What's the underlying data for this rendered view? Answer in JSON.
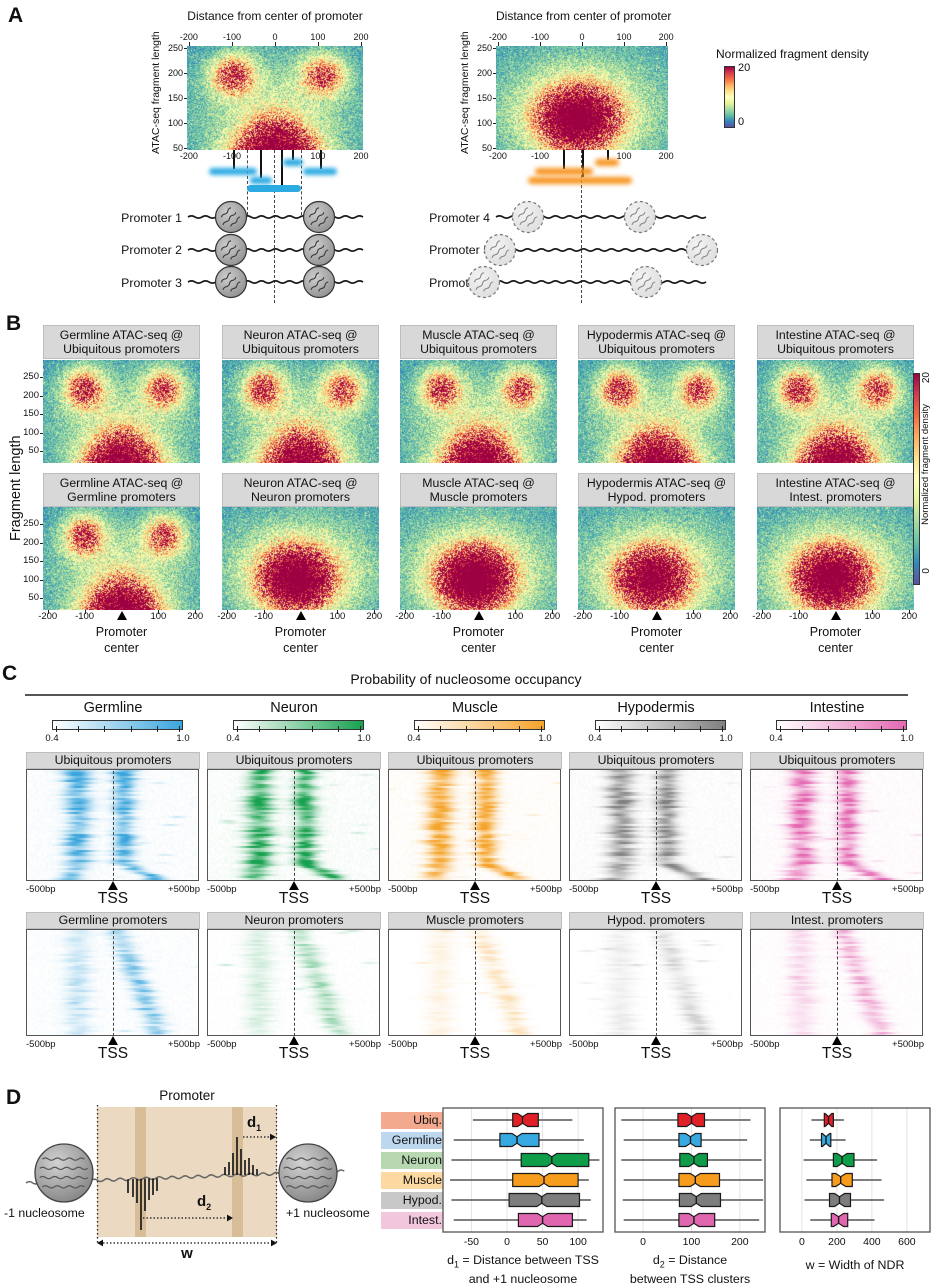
{
  "figure": {
    "panel_a_label": "A",
    "panel_b_label": "B",
    "panel_c_label": "C",
    "panel_d_label": "D"
  },
  "colors": {
    "heat_colormap": [
      "#5e4fa2",
      "#3288bd",
      "#66c2a5",
      "#abdda4",
      "#e6f598",
      "#ffffbf",
      "#fee08b",
      "#fdae61",
      "#f46d43",
      "#d53e4f",
      "#9e0142"
    ],
    "header_bg": "#d8d8d8",
    "fragment_blue": "#2caae2",
    "fragment_orange": "#f7941e",
    "promoter_box": "#ecd9c2",
    "promoter_stripe": "#d8bd99"
  },
  "panel_a": {
    "left": {
      "title": "Distance from center of promoter",
      "ylabel": "ATAC-seq fragment length",
      "x_ticks": [
        "-200",
        "-100",
        "0",
        "100",
        "200"
      ],
      "x_ticks_bottom": [
        "-200",
        "-100",
        "100",
        "200"
      ],
      "y_ticks": [
        "250",
        "200",
        "150",
        "100",
        "50"
      ],
      "promoters": [
        "Promoter 1",
        "Promoter 2",
        "Promoter 3"
      ]
    },
    "right": {
      "title": "Distance from center of promoter",
      "ylabel": "ATAC-seq fragment length",
      "x_ticks": [
        "-200",
        "-100",
        "0",
        "100",
        "200"
      ],
      "x_ticks_bottom": [
        "-200",
        "-100",
        "100",
        "200"
      ],
      "y_ticks": [
        "250",
        "200",
        "150",
        "100",
        "50"
      ],
      "promoters": [
        "Promoter 4",
        "Promoter 5",
        "Promoter 6"
      ]
    },
    "colorbar": {
      "title": "Normalized fragment density",
      "max": "20",
      "min": "0"
    }
  },
  "panel_b": {
    "ylabel": "Fragment length",
    "y_ticks": [
      "250",
      "200",
      "150",
      "100",
      "50"
    ],
    "x_ticks": [
      "-200",
      "-100",
      "100",
      "200"
    ],
    "x_axis_label_lines": [
      "Promoter",
      "center"
    ],
    "colorbar": {
      "label": "Normalized fragment density",
      "max": "20",
      "min": "0"
    },
    "columns": [
      {
        "row1": "Germline ATAC-seq @ Ubiquitous promoters",
        "row2": "Germline ATAC-seq @ Germline promoters",
        "row2_pattern": "V",
        "row2_amp": 1.3
      },
      {
        "row1": "Neuron ATAC-seq @ Ubiquitous promoters",
        "row2": "Neuron ATAC-seq @ Neuron promoters",
        "row2_pattern": "central",
        "row2_amp": 1.35
      },
      {
        "row1": "Muscle ATAC-seq @ Ubiquitous promoters",
        "row2": "Muscle ATAC-seq @ Muscle promoters",
        "row2_pattern": "central",
        "row2_amp": 1.45
      },
      {
        "row1": "Hypodermis ATAC-seq @ Ubiquitous promoters",
        "row2": "Hypodermis ATAC-seq @ Hypod. promoters",
        "row2_pattern": "central",
        "row2_amp": 1.15
      },
      {
        "row1": "Intestine ATAC-seq @ Ubiquitous promoters",
        "row2": "Intestine ATAC-seq @ Intest. promoters",
        "row2_pattern": "central",
        "row2_amp": 1.3
      }
    ]
  },
  "panel_c": {
    "title": "Probability of nucleosome occupancy",
    "scale_min": "0.4",
    "scale_max": "1.0",
    "x_left": "-500bp",
    "x_center": "TSS",
    "x_right": "+500bp",
    "columns": [
      {
        "tissue": "Germline",
        "color": "#3aa5dc",
        "row1": "Ubiquitous promoters",
        "row2": "Germline promoters",
        "row2_strength": 0.85
      },
      {
        "tissue": "Neuron",
        "color": "#18a14f",
        "row1": "Ubiquitous promoters",
        "row2": "Neuron promoters",
        "row2_strength": 0.5
      },
      {
        "tissue": "Muscle",
        "color": "#f5a329",
        "row1": "Ubiquitous promoters",
        "row2": "Muscle promoters",
        "row2_strength": 0.38
      },
      {
        "tissue": "Hypodermis",
        "color": "#808080",
        "row1": "Ubiquitous promoters",
        "row2": "Hypod. promoters",
        "row2_strength": 0.42
      },
      {
        "tissue": "Intestine",
        "color": "#e468b2",
        "row1": "Ubiquitous promoters",
        "row2": "Intest. promoters",
        "row2_strength": 0.7
      }
    ]
  },
  "panel_d": {
    "diagram": {
      "title": "Promoter",
      "minus1": "-1 nucleosome",
      "plus1": "+1 nucleosome",
      "d1_base": "d",
      "d1_sub": "1",
      "d2_base": "d",
      "d2_sub": "2",
      "w_label": "w"
    },
    "legend": [
      {
        "label": "Ubiq.",
        "color": "#e02026",
        "bg": "#f2a98e"
      },
      {
        "label": "Germline",
        "color": "#36a9e1",
        "bg": "#bdd7ee"
      },
      {
        "label": "Neuron",
        "color": "#0f9d4a",
        "bg": "#b7d8b0"
      },
      {
        "label": "Muscle",
        "color": "#f79c1c",
        "bg": "#fbd9a0"
      },
      {
        "label": "Hypod.",
        "color": "#7d7d7d",
        "bg": "#c8c8c8"
      },
      {
        "label": "Intest.",
        "color": "#e066b0",
        "bg": "#f2c6dd"
      }
    ],
    "captions": [
      {
        "base": "d",
        "sub": "1",
        "rest": " = Distance between TSS",
        "line2": "and +1 nucleosome"
      },
      {
        "base": "d",
        "sub": "2",
        "rest": " = Distance",
        "line2": "between TSS clusters"
      },
      {
        "base": "",
        "sub": "",
        "rest": "w = Width of NDR",
        "line2": ""
      }
    ]
  },
  "chart_data": [
    {
      "type": "heatmap",
      "panel": "A-left",
      "xlabel": "Distance from center of promoter",
      "ylabel": "ATAC-seq fragment length",
      "xlim": [
        -200,
        200
      ],
      "ylim": [
        50,
        250
      ],
      "colorbar_label": "Normalized fragment density",
      "colorbar_range": [
        0,
        20
      ],
      "description": "High density of ~180-220 bp fragments centered near -100 bp and +100 bp (flanking nucleosomes) plus a dense wedge of sub-100 bp fragments at the promoter center"
    },
    {
      "type": "heatmap",
      "panel": "A-right",
      "xlabel": "Distance from center of promoter",
      "ylabel": "ATAC-seq fragment length",
      "xlim": [
        -200,
        200
      ],
      "ylim": [
        50,
        250
      ],
      "colorbar_label": "Normalized fragment density",
      "colorbar_range": [
        0,
        20
      ],
      "description": "Single broad dense cloud of ~50-150 bp fragments centered on the promoter; no positioned flanking nucleosomes"
    },
    {
      "type": "heatmap",
      "panel": "B",
      "xlabel": "Promoter center",
      "ylabel": "Fragment length",
      "xlim": [
        -200,
        200
      ],
      "ylim": [
        50,
        300
      ],
      "colorbar_label": "Normalized fragment density",
      "colorbar_range": [
        0,
        20
      ],
      "grid_titles_row1": [
        "Germline ATAC-seq @ Ubiquitous promoters",
        "Neuron ATAC-seq @ Ubiquitous promoters",
        "Muscle ATAC-seq @ Ubiquitous promoters",
        "Hypodermis ATAC-seq @ Ubiquitous promoters",
        "Intestine ATAC-seq @ Ubiquitous promoters"
      ],
      "grid_titles_row2": [
        "Germline ATAC-seq @ Germline promoters",
        "Neuron ATAC-seq @ Neuron promoters",
        "Muscle ATAC-seq @ Muscle promoters",
        "Hypodermis ATAC-seq @ Hypod. promoters",
        "Intestine ATAC-seq @ Intest. promoters"
      ],
      "description": "Row 1 (all tissues at ubiquitous promoters) and Germline at germline promoters show the V pattern of flanking ~200 bp fragments plus central short fragments; Neuron/Muscle/Hypodermis/Intestine at their own promoters show one central short-fragment cloud"
    },
    {
      "type": "heatmap",
      "panel": "C",
      "title": "Probability of nucleosome occupancy",
      "xlim_bp": [
        -500,
        500
      ],
      "scale": [
        0.4,
        1.0
      ],
      "tissues": [
        "Germline",
        "Neuron",
        "Muscle",
        "Hypodermis",
        "Intestine"
      ],
      "row1_headers": [
        "Ubiquitous promoters",
        "Ubiquitous promoters",
        "Ubiquitous promoters",
        "Ubiquitous promoters",
        "Ubiquitous promoters"
      ],
      "row2_headers": [
        "Germline promoters",
        "Neuron promoters",
        "Muscle promoters",
        "Hypod. promoters",
        "Intest. promoters"
      ],
      "description": "Per-promoter heatmaps of nucleosome occupancy; ubiquitous promoters show -1 and +1 nucleosome bands flanking the TSS, tissue-specific promoters show a fainter +1 band fanning away from the TSS"
    },
    {
      "type": "boxplot",
      "name": "d1",
      "title": "d1 = Distance between TSS and +1 nucleosome",
      "x_ticks": [
        -50,
        0,
        50,
        100
      ],
      "xlim": [
        -90,
        135
      ],
      "categories": [
        "Ubiq.",
        "Germline",
        "Neuron",
        "Muscle",
        "Hypod.",
        "Intest."
      ],
      "stats": [
        {
          "lo": -48,
          "q1": 8,
          "med": 22,
          "q3": 44,
          "hi": 92
        },
        {
          "lo": -75,
          "q1": -10,
          "med": 14,
          "q3": 45,
          "hi": 108
        },
        {
          "lo": -78,
          "q1": 20,
          "med": 63,
          "q3": 115,
          "hi": 130
        },
        {
          "lo": -80,
          "q1": 8,
          "med": 52,
          "q3": 100,
          "hi": 115
        },
        {
          "lo": -78,
          "q1": 3,
          "med": 49,
          "q3": 102,
          "hi": 118
        },
        {
          "lo": -75,
          "q1": 16,
          "med": 50,
          "q3": 92,
          "hi": 112
        }
      ]
    },
    {
      "type": "boxplot",
      "name": "d2",
      "title": "d2 = Distance between TSS clusters",
      "x_ticks": [
        0,
        100,
        200
      ],
      "xlim": [
        -58,
        252
      ],
      "categories": [
        "Ubiq.",
        "Germline",
        "Neuron",
        "Muscle",
        "Hypod.",
        "Intest."
      ],
      "stats": [
        {
          "lo": -45,
          "q1": 72,
          "med": 100,
          "q3": 127,
          "hi": 222
        },
        {
          "lo": -40,
          "q1": 74,
          "med": 98,
          "q3": 120,
          "hi": 215
        },
        {
          "lo": -45,
          "q1": 76,
          "med": 105,
          "q3": 133,
          "hi": 245
        },
        {
          "lo": -40,
          "q1": 74,
          "med": 108,
          "q3": 158,
          "hi": 248
        },
        {
          "lo": -42,
          "q1": 75,
          "med": 110,
          "q3": 160,
          "hi": 248
        },
        {
          "lo": -40,
          "q1": 74,
          "med": 105,
          "q3": 148,
          "hi": 240
        }
      ]
    },
    {
      "type": "boxplot",
      "name": "w",
      "title": "w = Width of NDR",
      "x_ticks": [
        0,
        200,
        400,
        600
      ],
      "xlim": [
        -125,
        732
      ],
      "categories": [
        "Ubiq.",
        "Germline",
        "Neuron",
        "Muscle",
        "Hypod.",
        "Intest."
      ],
      "stats": [
        {
          "lo": 55,
          "q1": 128,
          "med": 152,
          "q3": 180,
          "hi": 240
        },
        {
          "lo": 45,
          "q1": 112,
          "med": 138,
          "q3": 165,
          "hi": 250
        },
        {
          "lo": 10,
          "q1": 180,
          "med": 230,
          "q3": 298,
          "hi": 430
        },
        {
          "lo": 25,
          "q1": 172,
          "med": 222,
          "q3": 288,
          "hi": 455
        },
        {
          "lo": 15,
          "q1": 158,
          "med": 215,
          "q3": 278,
          "hi": 470
        },
        {
          "lo": 48,
          "q1": 168,
          "med": 210,
          "q3": 262,
          "hi": 415
        }
      ]
    }
  ]
}
